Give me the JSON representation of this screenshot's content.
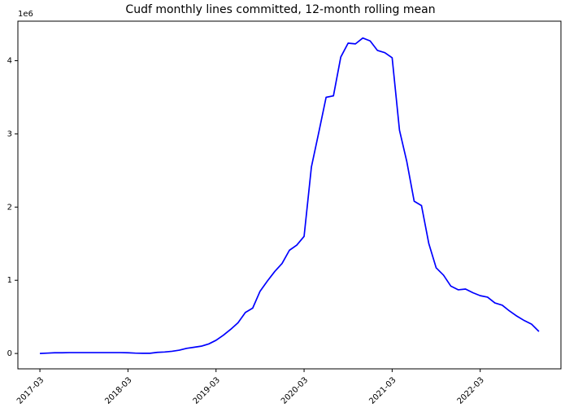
{
  "chart_data": {
    "type": "line",
    "title": "Cudf monthly lines committed, 12-month rolling mean",
    "y_offset_label": "1e6",
    "color": "#0000ff",
    "x": [
      "2017-03",
      "2017-04",
      "2017-05",
      "2017-06",
      "2017-07",
      "2017-08",
      "2017-09",
      "2017-10",
      "2017-11",
      "2017-12",
      "2018-01",
      "2018-02",
      "2018-03",
      "2018-04",
      "2018-05",
      "2018-06",
      "2018-07",
      "2018-08",
      "2018-09",
      "2018-10",
      "2018-11",
      "2018-12",
      "2019-01",
      "2019-02",
      "2019-03",
      "2019-04",
      "2019-05",
      "2019-06",
      "2019-07",
      "2019-08",
      "2019-09",
      "2019-10",
      "2019-11",
      "2019-12",
      "2020-01",
      "2020-02",
      "2020-03",
      "2020-04",
      "2020-05",
      "2020-06",
      "2020-07",
      "2020-08",
      "2020-09",
      "2020-10",
      "2020-11",
      "2020-12",
      "2021-01",
      "2021-02",
      "2021-03",
      "2021-04",
      "2021-05",
      "2021-06",
      "2021-07",
      "2021-08",
      "2021-09",
      "2021-10",
      "2021-11",
      "2021-12",
      "2022-01",
      "2022-02",
      "2022-03",
      "2022-04",
      "2022-05",
      "2022-06",
      "2022-07",
      "2022-08",
      "2022-09",
      "2022-10",
      "2022-11"
    ],
    "values": [
      0.0,
      0.005,
      0.01,
      0.01,
      0.012,
      0.012,
      0.012,
      0.012,
      0.012,
      0.012,
      0.012,
      0.012,
      0.01,
      0.005,
      0.003,
      0.003,
      0.015,
      0.02,
      0.03,
      0.045,
      0.07,
      0.085,
      0.1,
      0.13,
      0.18,
      0.25,
      0.33,
      0.42,
      0.56,
      0.62,
      0.85,
      0.99,
      1.12,
      1.23,
      1.41,
      1.48,
      1.6,
      2.55,
      3.02,
      3.5,
      3.52,
      4.05,
      4.24,
      4.23,
      4.31,
      4.27,
      4.14,
      4.11,
      4.04,
      3.05,
      2.62,
      2.08,
      2.02,
      1.5,
      1.17,
      1.07,
      0.92,
      0.87,
      0.88,
      0.83,
      0.79,
      0.77,
      0.69,
      0.66,
      0.58,
      0.51,
      0.45,
      0.4,
      0.3
    ],
    "xlim": [
      "2016-12",
      "2023-02"
    ],
    "xticks": [
      "2017-03",
      "2018-03",
      "2019-03",
      "2020-03",
      "2021-03",
      "2022-03"
    ],
    "ylim": [
      -0.21,
      4.54
    ],
    "yticks": [
      0,
      1,
      2,
      3,
      4
    ]
  }
}
